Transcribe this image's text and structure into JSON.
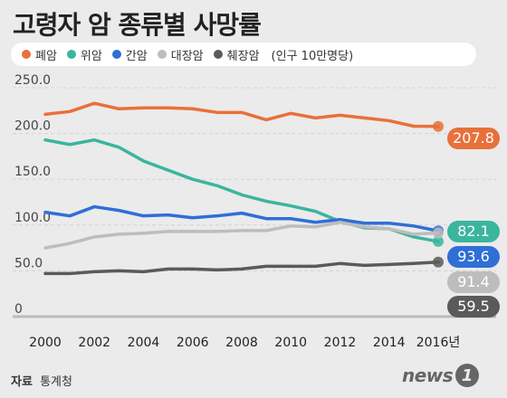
{
  "title": "고령자 암 종류별 사망률",
  "legend_unit": "(인구 10만명당)",
  "source_label": "자료",
  "source_value": "통계청",
  "logo": {
    "text": "news",
    "badge": "1"
  },
  "chart_data": {
    "type": "line",
    "title": "고령자 암 종류별 사망률",
    "x": [
      2000,
      2001,
      2002,
      2003,
      2004,
      2005,
      2006,
      2007,
      2008,
      2009,
      2010,
      2011,
      2012,
      2013,
      2014,
      2015,
      2016
    ],
    "xticks": [
      "2000",
      "2002",
      "2004",
      "2006",
      "2008",
      "2010",
      "2012",
      "2014",
      "2016년"
    ],
    "xtick_values": [
      2000,
      2002,
      2004,
      2006,
      2008,
      2010,
      2012,
      2014,
      2016
    ],
    "yticks": [
      "0",
      "50.0",
      "100.0",
      "150.0",
      "200.0",
      "250.0"
    ],
    "ytick_values": [
      0,
      50,
      100,
      150,
      200,
      250
    ],
    "ylim": [
      0,
      250
    ],
    "grid": true,
    "legend_position": "top",
    "series": [
      {
        "name": "폐암",
        "color": "#e8703a",
        "end_label": "207.8",
        "values": [
          221,
          224,
          233,
          227,
          228,
          228,
          227,
          223,
          223,
          215,
          222,
          217,
          220,
          217,
          214,
          208,
          207.8
        ]
      },
      {
        "name": "위암",
        "color": "#3bb59e",
        "end_label": "82.1",
        "values": [
          193,
          188,
          193,
          185,
          170,
          160,
          150,
          143,
          133,
          126,
          121,
          115,
          104,
          97,
          96,
          87,
          82.1
        ]
      },
      {
        "name": "간암",
        "color": "#2f6fd6",
        "end_label": "93.6",
        "values": [
          114,
          110,
          120,
          116,
          110,
          111,
          108,
          110,
          113,
          107,
          107,
          103,
          106,
          102,
          102,
          99,
          93.6
        ]
      },
      {
        "name": "대장암",
        "color": "#bdbdbd",
        "end_label": "91.4",
        "values": [
          75,
          80,
          87,
          90,
          91,
          93,
          93,
          93,
          94,
          94,
          99,
          98,
          103,
          98,
          96,
          90,
          91.4
        ]
      },
      {
        "name": "췌장암",
        "color": "#5a5a5a",
        "end_label": "59.5",
        "values": [
          47,
          47,
          49,
          50,
          49,
          52,
          52,
          51,
          52,
          55,
          55,
          55,
          58,
          56,
          57,
          58,
          59.5
        ]
      }
    ]
  }
}
